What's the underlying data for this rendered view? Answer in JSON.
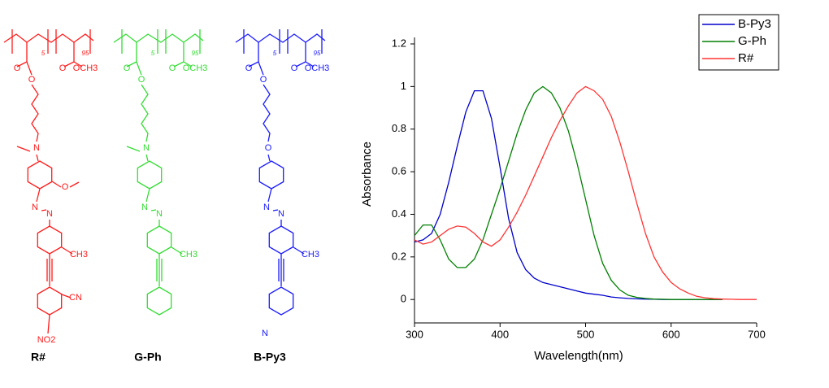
{
  "structures": [
    {
      "name": "R#",
      "color": "#ff1a1a",
      "labels": [
        "5",
        "95",
        "O",
        "O",
        "O",
        "OCH3",
        "N",
        "O",
        "N",
        "N",
        "CH3",
        "CN",
        "NO2"
      ]
    },
    {
      "name": "G-Ph",
      "color": "#33dd33",
      "labels": [
        "5",
        "95",
        "O",
        "O",
        "O",
        "OCH3",
        "N",
        "N",
        "N",
        "CH3"
      ]
    },
    {
      "name": "B-Py3",
      "color": "#1a1aff",
      "labels": [
        "5",
        "95",
        "O",
        "O",
        "O",
        "OCH3",
        "O",
        "N",
        "N",
        "CH3",
        "N"
      ]
    }
  ],
  "chart_data": {
    "type": "line",
    "xlabel": "Wavelength(nm)",
    "ylabel": "Absorbance",
    "x": [
      300,
      310,
      320,
      330,
      340,
      350,
      360,
      370,
      380,
      390,
      400,
      410,
      420,
      430,
      440,
      450,
      460,
      470,
      480,
      490,
      500,
      510,
      520,
      530,
      540,
      550,
      560,
      570,
      580,
      590,
      600,
      610,
      620,
      630,
      640,
      650,
      660,
      670,
      680,
      690,
      700
    ],
    "series": [
      {
        "name": "B-Py3",
        "color": "#0000cc",
        "values": [
          0.27,
          0.28,
          0.31,
          0.4,
          0.55,
          0.72,
          0.88,
          0.98,
          0.98,
          0.85,
          0.62,
          0.38,
          0.22,
          0.14,
          0.1,
          0.08,
          0.07,
          0.06,
          0.05,
          0.04,
          0.03,
          0.025,
          0.02,
          0.012,
          0.008,
          0.005,
          0.003,
          0.002,
          0.001,
          0,
          0,
          0,
          0,
          0,
          0,
          0,
          0,
          null,
          null,
          null,
          null
        ]
      },
      {
        "name": "G-Ph",
        "color": "#008000",
        "values": [
          0.3,
          0.35,
          0.35,
          0.28,
          0.19,
          0.15,
          0.15,
          0.19,
          0.28,
          0.4,
          0.52,
          0.65,
          0.78,
          0.89,
          0.97,
          1.0,
          0.97,
          0.9,
          0.79,
          0.64,
          0.47,
          0.3,
          0.17,
          0.09,
          0.045,
          0.02,
          0.01,
          0.005,
          0.002,
          0.001,
          0,
          0,
          0,
          0,
          0,
          0,
          0,
          null,
          null,
          null,
          null
        ]
      },
      {
        "name": "R#",
        "color": "#ff3333",
        "values": [
          0.28,
          0.26,
          0.27,
          0.3,
          0.33,
          0.345,
          0.34,
          0.31,
          0.27,
          0.25,
          0.28,
          0.34,
          0.41,
          0.49,
          0.58,
          0.67,
          0.76,
          0.84,
          0.91,
          0.97,
          1.0,
          0.98,
          0.94,
          0.86,
          0.74,
          0.6,
          0.45,
          0.31,
          0.2,
          0.13,
          0.08,
          0.05,
          0.03,
          0.015,
          0.008,
          0.004,
          0.002,
          0.001,
          0,
          0,
          0
        ]
      }
    ],
    "xlim": [
      300,
      700
    ],
    "ylim": [
      -0.11,
      1.2
    ],
    "xticks": [
      300,
      400,
      500,
      600,
      700
    ],
    "yticks": [
      0,
      0.2,
      0.4,
      0.6,
      0.8,
      1,
      1.2
    ],
    "legend": "upper right"
  }
}
